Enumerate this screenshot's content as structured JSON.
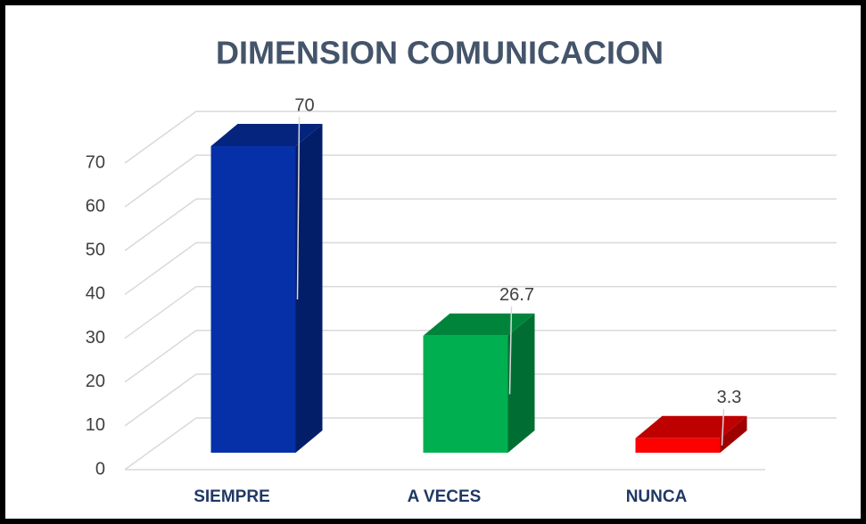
{
  "chart_data": {
    "type": "bar3d",
    "title": "DIMENSION COMUNICACION",
    "categories": [
      "SIEMPRE",
      "A VECES",
      "NUNCA"
    ],
    "values": [
      70,
      26.7,
      3.3
    ],
    "colors": [
      "#0530a8",
      "#00b050",
      "#ff0000"
    ],
    "ylim": [
      0,
      70
    ],
    "yticks": [
      0,
      10,
      20,
      30,
      40,
      50,
      60,
      70
    ],
    "grid": true
  }
}
